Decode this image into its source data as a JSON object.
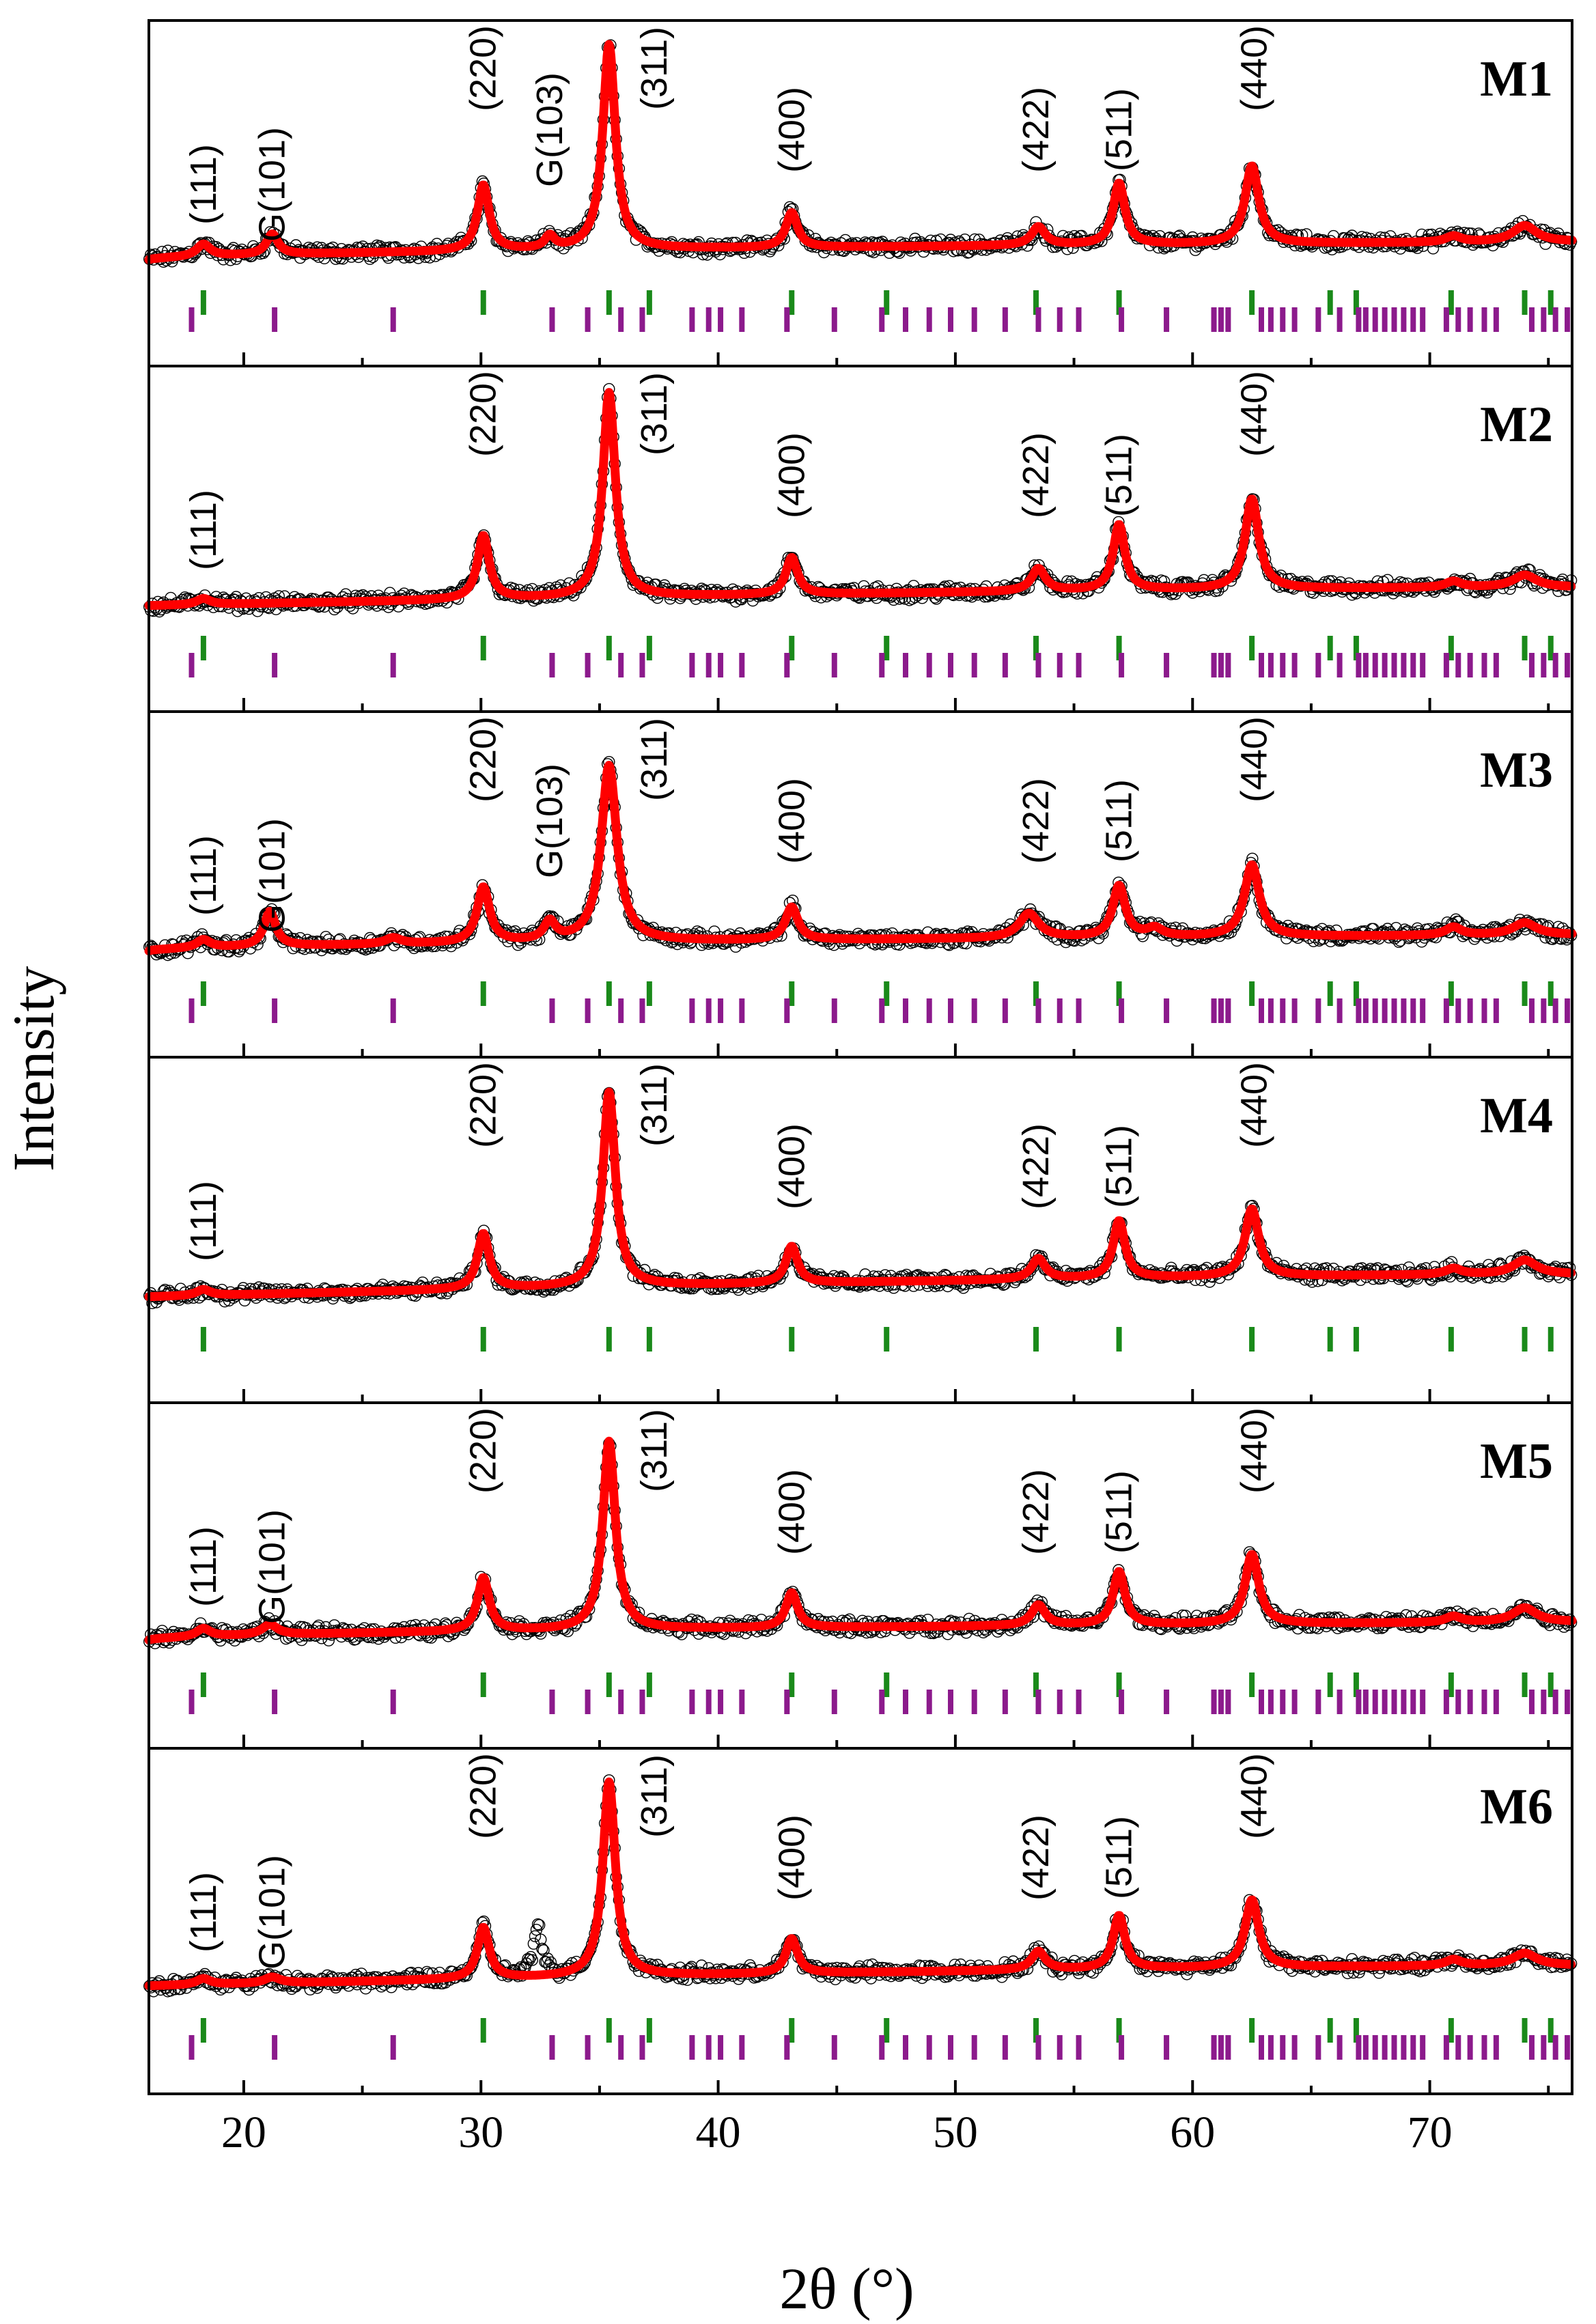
{
  "chart_data": {
    "type": "scatter",
    "title": "",
    "xlabel": "2θ (°)",
    "ylabel": "Intensity",
    "xlim": [
      16,
      76
    ],
    "x_ticks": [
      20,
      30,
      40,
      50,
      60,
      70
    ],
    "x_tick_labels": [
      "20",
      "30",
      "40",
      "50",
      "60",
      "70"
    ],
    "legend": "none",
    "series_styles": {
      "observed": {
        "marker": "open-circle",
        "color": "#000000"
      },
      "fit": {
        "line": "thick",
        "color": "#ff0000"
      },
      "ticks_phase1": {
        "color": "#1a8a1a"
      },
      "ticks_phase2": {
        "color": "#8c1a8c"
      }
    },
    "reflection_ticks": {
      "phase1": [
        18.3,
        30.1,
        35.4,
        37.1,
        43.1,
        47.1,
        53.4,
        56.9,
        62.5,
        65.8,
        66.9,
        70.9,
        74.0,
        75.1
      ],
      "phase2": [
        17.8,
        21.3,
        26.3,
        33.0,
        34.5,
        35.9,
        36.8,
        38.9,
        39.6,
        40.1,
        41.0,
        42.9,
        44.9,
        46.9,
        47.9,
        48.9,
        49.8,
        50.8,
        52.1,
        53.5,
        54.4,
        55.2,
        57.0,
        58.9,
        60.9,
        61.2,
        61.5,
        62.9,
        63.3,
        63.8,
        64.3,
        65.3,
        66.2,
        67.0,
        67.3,
        67.7,
        68.1,
        68.5,
        68.9,
        69.3,
        69.7,
        70.7,
        71.2,
        71.7,
        72.3,
        72.8,
        74.3,
        74.8,
        75.3,
        75.8
      ]
    },
    "panels": [
      {
        "name": "M1",
        "phase2_ticks": true,
        "peak_labels": [
          {
            "text": "(111)",
            "x": 18.3,
            "level": "low"
          },
          {
            "text": "G(101)",
            "x": 21.2,
            "level": "low"
          },
          {
            "text": "(220)",
            "x": 30.1,
            "level": "high"
          },
          {
            "text": "G(103)",
            "x": 32.9,
            "level": "mid"
          },
          {
            "text": "(311)",
            "x": 37.3,
            "level": "high"
          },
          {
            "text": "(400)",
            "x": 43.1,
            "level": "mid"
          },
          {
            "text": "(422)",
            "x": 53.4,
            "level": "mid"
          },
          {
            "text": "(511)",
            "x": 56.9,
            "level": "mid"
          },
          {
            "text": "(440)",
            "x": 62.6,
            "level": "high"
          }
        ],
        "peaks": [
          {
            "pos": 18.3,
            "height": 0.06,
            "width": 0.35
          },
          {
            "pos": 21.2,
            "height": 0.1,
            "width": 0.3
          },
          {
            "pos": 30.1,
            "height": 0.32,
            "width": 0.3
          },
          {
            "pos": 32.9,
            "height": 0.06,
            "width": 0.25
          },
          {
            "pos": 35.4,
            "height": 1.0,
            "width": 0.32
          },
          {
            "pos": 43.1,
            "height": 0.17,
            "width": 0.3
          },
          {
            "pos": 53.5,
            "height": 0.09,
            "width": 0.35
          },
          {
            "pos": 56.9,
            "height": 0.3,
            "width": 0.3
          },
          {
            "pos": 62.5,
            "height": 0.38,
            "width": 0.35
          },
          {
            "pos": 71.0,
            "height": 0.03,
            "width": 0.4
          },
          {
            "pos": 74.0,
            "height": 0.08,
            "width": 0.6
          }
        ],
        "background": {
          "start": 0.03,
          "end": 0.12,
          "shape": "concave"
        }
      },
      {
        "name": "M2",
        "phase2_ticks": true,
        "peak_labels": [
          {
            "text": "(111)",
            "x": 18.3,
            "level": "low"
          },
          {
            "text": "(220)",
            "x": 30.1,
            "level": "high"
          },
          {
            "text": "(311)",
            "x": 37.3,
            "level": "high"
          },
          {
            "text": "(400)",
            "x": 43.1,
            "level": "mid"
          },
          {
            "text": "(422)",
            "x": 53.4,
            "level": "mid"
          },
          {
            "text": "(511)",
            "x": 56.9,
            "level": "mid"
          },
          {
            "text": "(440)",
            "x": 62.6,
            "level": "high"
          }
        ],
        "peaks": [
          {
            "pos": 18.3,
            "height": 0.03,
            "width": 0.35
          },
          {
            "pos": 30.1,
            "height": 0.31,
            "width": 0.3
          },
          {
            "pos": 35.4,
            "height": 1.0,
            "width": 0.32
          },
          {
            "pos": 43.1,
            "height": 0.18,
            "width": 0.3
          },
          {
            "pos": 53.5,
            "height": 0.11,
            "width": 0.35
          },
          {
            "pos": 56.9,
            "height": 0.32,
            "width": 0.3
          },
          {
            "pos": 62.5,
            "height": 0.44,
            "width": 0.35
          },
          {
            "pos": 71.0,
            "height": 0.03,
            "width": 0.4
          },
          {
            "pos": 74.0,
            "height": 0.06,
            "width": 0.6
          }
        ],
        "background": {
          "start": 0.03,
          "end": 0.12,
          "shape": "rise"
        }
      },
      {
        "name": "M3",
        "phase2_ticks": true,
        "peak_labels": [
          {
            "text": "(111)",
            "x": 18.3,
            "level": "low"
          },
          {
            "text": "G(101)",
            "x": 21.2,
            "level": "low"
          },
          {
            "text": "(220)",
            "x": 30.1,
            "level": "high"
          },
          {
            "text": "G(103)",
            "x": 32.9,
            "level": "mid"
          },
          {
            "text": "(311)",
            "x": 37.3,
            "level": "high"
          },
          {
            "text": "(400)",
            "x": 43.1,
            "level": "mid"
          },
          {
            "text": "(422)",
            "x": 53.4,
            "level": "mid"
          },
          {
            "text": "(511)",
            "x": 56.9,
            "level": "mid"
          },
          {
            "text": "(440)",
            "x": 62.6,
            "level": "high"
          }
        ],
        "peaks": [
          {
            "pos": 18.3,
            "height": 0.04,
            "width": 0.35
          },
          {
            "pos": 21.1,
            "height": 0.17,
            "width": 0.3
          },
          {
            "pos": 26.3,
            "height": 0.03,
            "width": 0.4
          },
          {
            "pos": 30.1,
            "height": 0.27,
            "width": 0.32
          },
          {
            "pos": 32.9,
            "height": 0.09,
            "width": 0.3
          },
          {
            "pos": 35.4,
            "height": 0.86,
            "width": 0.4
          },
          {
            "pos": 43.1,
            "height": 0.16,
            "width": 0.32
          },
          {
            "pos": 53.1,
            "height": 0.12,
            "width": 0.5
          },
          {
            "pos": 56.9,
            "height": 0.25,
            "width": 0.32
          },
          {
            "pos": 58.4,
            "height": 0.04,
            "width": 0.4
          },
          {
            "pos": 62.5,
            "height": 0.35,
            "width": 0.38
          },
          {
            "pos": 71.0,
            "height": 0.04,
            "width": 0.4
          },
          {
            "pos": 74.0,
            "height": 0.06,
            "width": 0.6
          }
        ],
        "background": {
          "start": 0.03,
          "end": 0.11,
          "shape": "concave"
        }
      },
      {
        "name": "M4",
        "phase2_ticks": false,
        "peak_labels": [
          {
            "text": "(111)",
            "x": 18.3,
            "level": "low"
          },
          {
            "text": "(220)",
            "x": 30.1,
            "level": "high"
          },
          {
            "text": "(311)",
            "x": 37.3,
            "level": "high"
          },
          {
            "text": "(400)",
            "x": 43.1,
            "level": "mid"
          },
          {
            "text": "(422)",
            "x": 53.4,
            "level": "mid"
          },
          {
            "text": "(511)",
            "x": 56.9,
            "level": "mid"
          },
          {
            "text": "(440)",
            "x": 62.6,
            "level": "high"
          }
        ],
        "peaks": [
          {
            "pos": 18.3,
            "height": 0.03,
            "width": 0.35
          },
          {
            "pos": 30.1,
            "height": 0.27,
            "width": 0.3
          },
          {
            "pos": 35.4,
            "height": 0.95,
            "width": 0.32
          },
          {
            "pos": 43.1,
            "height": 0.18,
            "width": 0.3
          },
          {
            "pos": 53.5,
            "height": 0.1,
            "width": 0.35
          },
          {
            "pos": 56.9,
            "height": 0.28,
            "width": 0.3
          },
          {
            "pos": 62.5,
            "height": 0.33,
            "width": 0.35
          },
          {
            "pos": 71.0,
            "height": 0.03,
            "width": 0.4
          },
          {
            "pos": 74.0,
            "height": 0.07,
            "width": 0.6
          }
        ],
        "background": {
          "start": 0.03,
          "end": 0.14,
          "shape": "rise"
        }
      },
      {
        "name": "M5",
        "phase2_ticks": true,
        "peak_labels": [
          {
            "text": "(111)",
            "x": 18.3,
            "level": "low"
          },
          {
            "text": "G(101)",
            "x": 21.2,
            "level": "low"
          },
          {
            "text": "(220)",
            "x": 30.1,
            "level": "high"
          },
          {
            "text": "(311)",
            "x": 37.3,
            "level": "high"
          },
          {
            "text": "(400)",
            "x": 43.1,
            "level": "mid"
          },
          {
            "text": "(422)",
            "x": 53.4,
            "level": "mid"
          },
          {
            "text": "(511)",
            "x": 56.9,
            "level": "mid"
          },
          {
            "text": "(440)",
            "x": 62.6,
            "level": "high"
          }
        ],
        "peaks": [
          {
            "pos": 18.3,
            "height": 0.04,
            "width": 0.35
          },
          {
            "pos": 21.1,
            "height": 0.05,
            "width": 0.4
          },
          {
            "pos": 30.1,
            "height": 0.26,
            "width": 0.3
          },
          {
            "pos": 35.4,
            "height": 0.92,
            "width": 0.32
          },
          {
            "pos": 43.1,
            "height": 0.17,
            "width": 0.3
          },
          {
            "pos": 53.5,
            "height": 0.1,
            "width": 0.35
          },
          {
            "pos": 56.9,
            "height": 0.26,
            "width": 0.3
          },
          {
            "pos": 62.5,
            "height": 0.34,
            "width": 0.35
          },
          {
            "pos": 71.0,
            "height": 0.03,
            "width": 0.4
          },
          {
            "pos": 74.0,
            "height": 0.07,
            "width": 0.6
          }
        ],
        "background": {
          "start": 0.04,
          "end": 0.13,
          "shape": "concave"
        }
      },
      {
        "name": "M6",
        "phase2_ticks": true,
        "peak_labels": [
          {
            "text": "(111)",
            "x": 18.3,
            "level": "low"
          },
          {
            "text": "G(101)",
            "x": 21.2,
            "level": "low"
          },
          {
            "text": "(220)",
            "x": 30.1,
            "level": "high"
          },
          {
            "text": "(311)",
            "x": 37.3,
            "level": "high"
          },
          {
            "text": "(400)",
            "x": 43.1,
            "level": "mid"
          },
          {
            "text": "(422)",
            "x": 53.4,
            "level": "mid"
          },
          {
            "text": "(511)",
            "x": 56.9,
            "level": "mid"
          },
          {
            "text": "(440)",
            "x": 62.6,
            "level": "high"
          }
        ],
        "peaks": [
          {
            "pos": 18.3,
            "height": 0.03,
            "width": 0.35
          },
          {
            "pos": 21.2,
            "height": 0.03,
            "width": 0.4
          },
          {
            "pos": 30.1,
            "height": 0.25,
            "width": 0.3
          },
          {
            "pos": 35.4,
            "height": 0.95,
            "width": 0.32
          },
          {
            "pos": 43.1,
            "height": 0.17,
            "width": 0.3
          },
          {
            "pos": 53.5,
            "height": 0.09,
            "width": 0.35
          },
          {
            "pos": 56.9,
            "height": 0.26,
            "width": 0.3
          },
          {
            "pos": 62.5,
            "height": 0.33,
            "width": 0.35
          },
          {
            "pos": 71.0,
            "height": 0.03,
            "width": 0.4
          },
          {
            "pos": 74.0,
            "height": 0.06,
            "width": 0.6
          }
        ],
        "observed_only_peaks": [
          {
            "pos": 32.4,
            "height": 0.25,
            "width": 0.2
          }
        ],
        "background": {
          "start": 0.04,
          "end": 0.14,
          "shape": "rise"
        }
      }
    ]
  }
}
